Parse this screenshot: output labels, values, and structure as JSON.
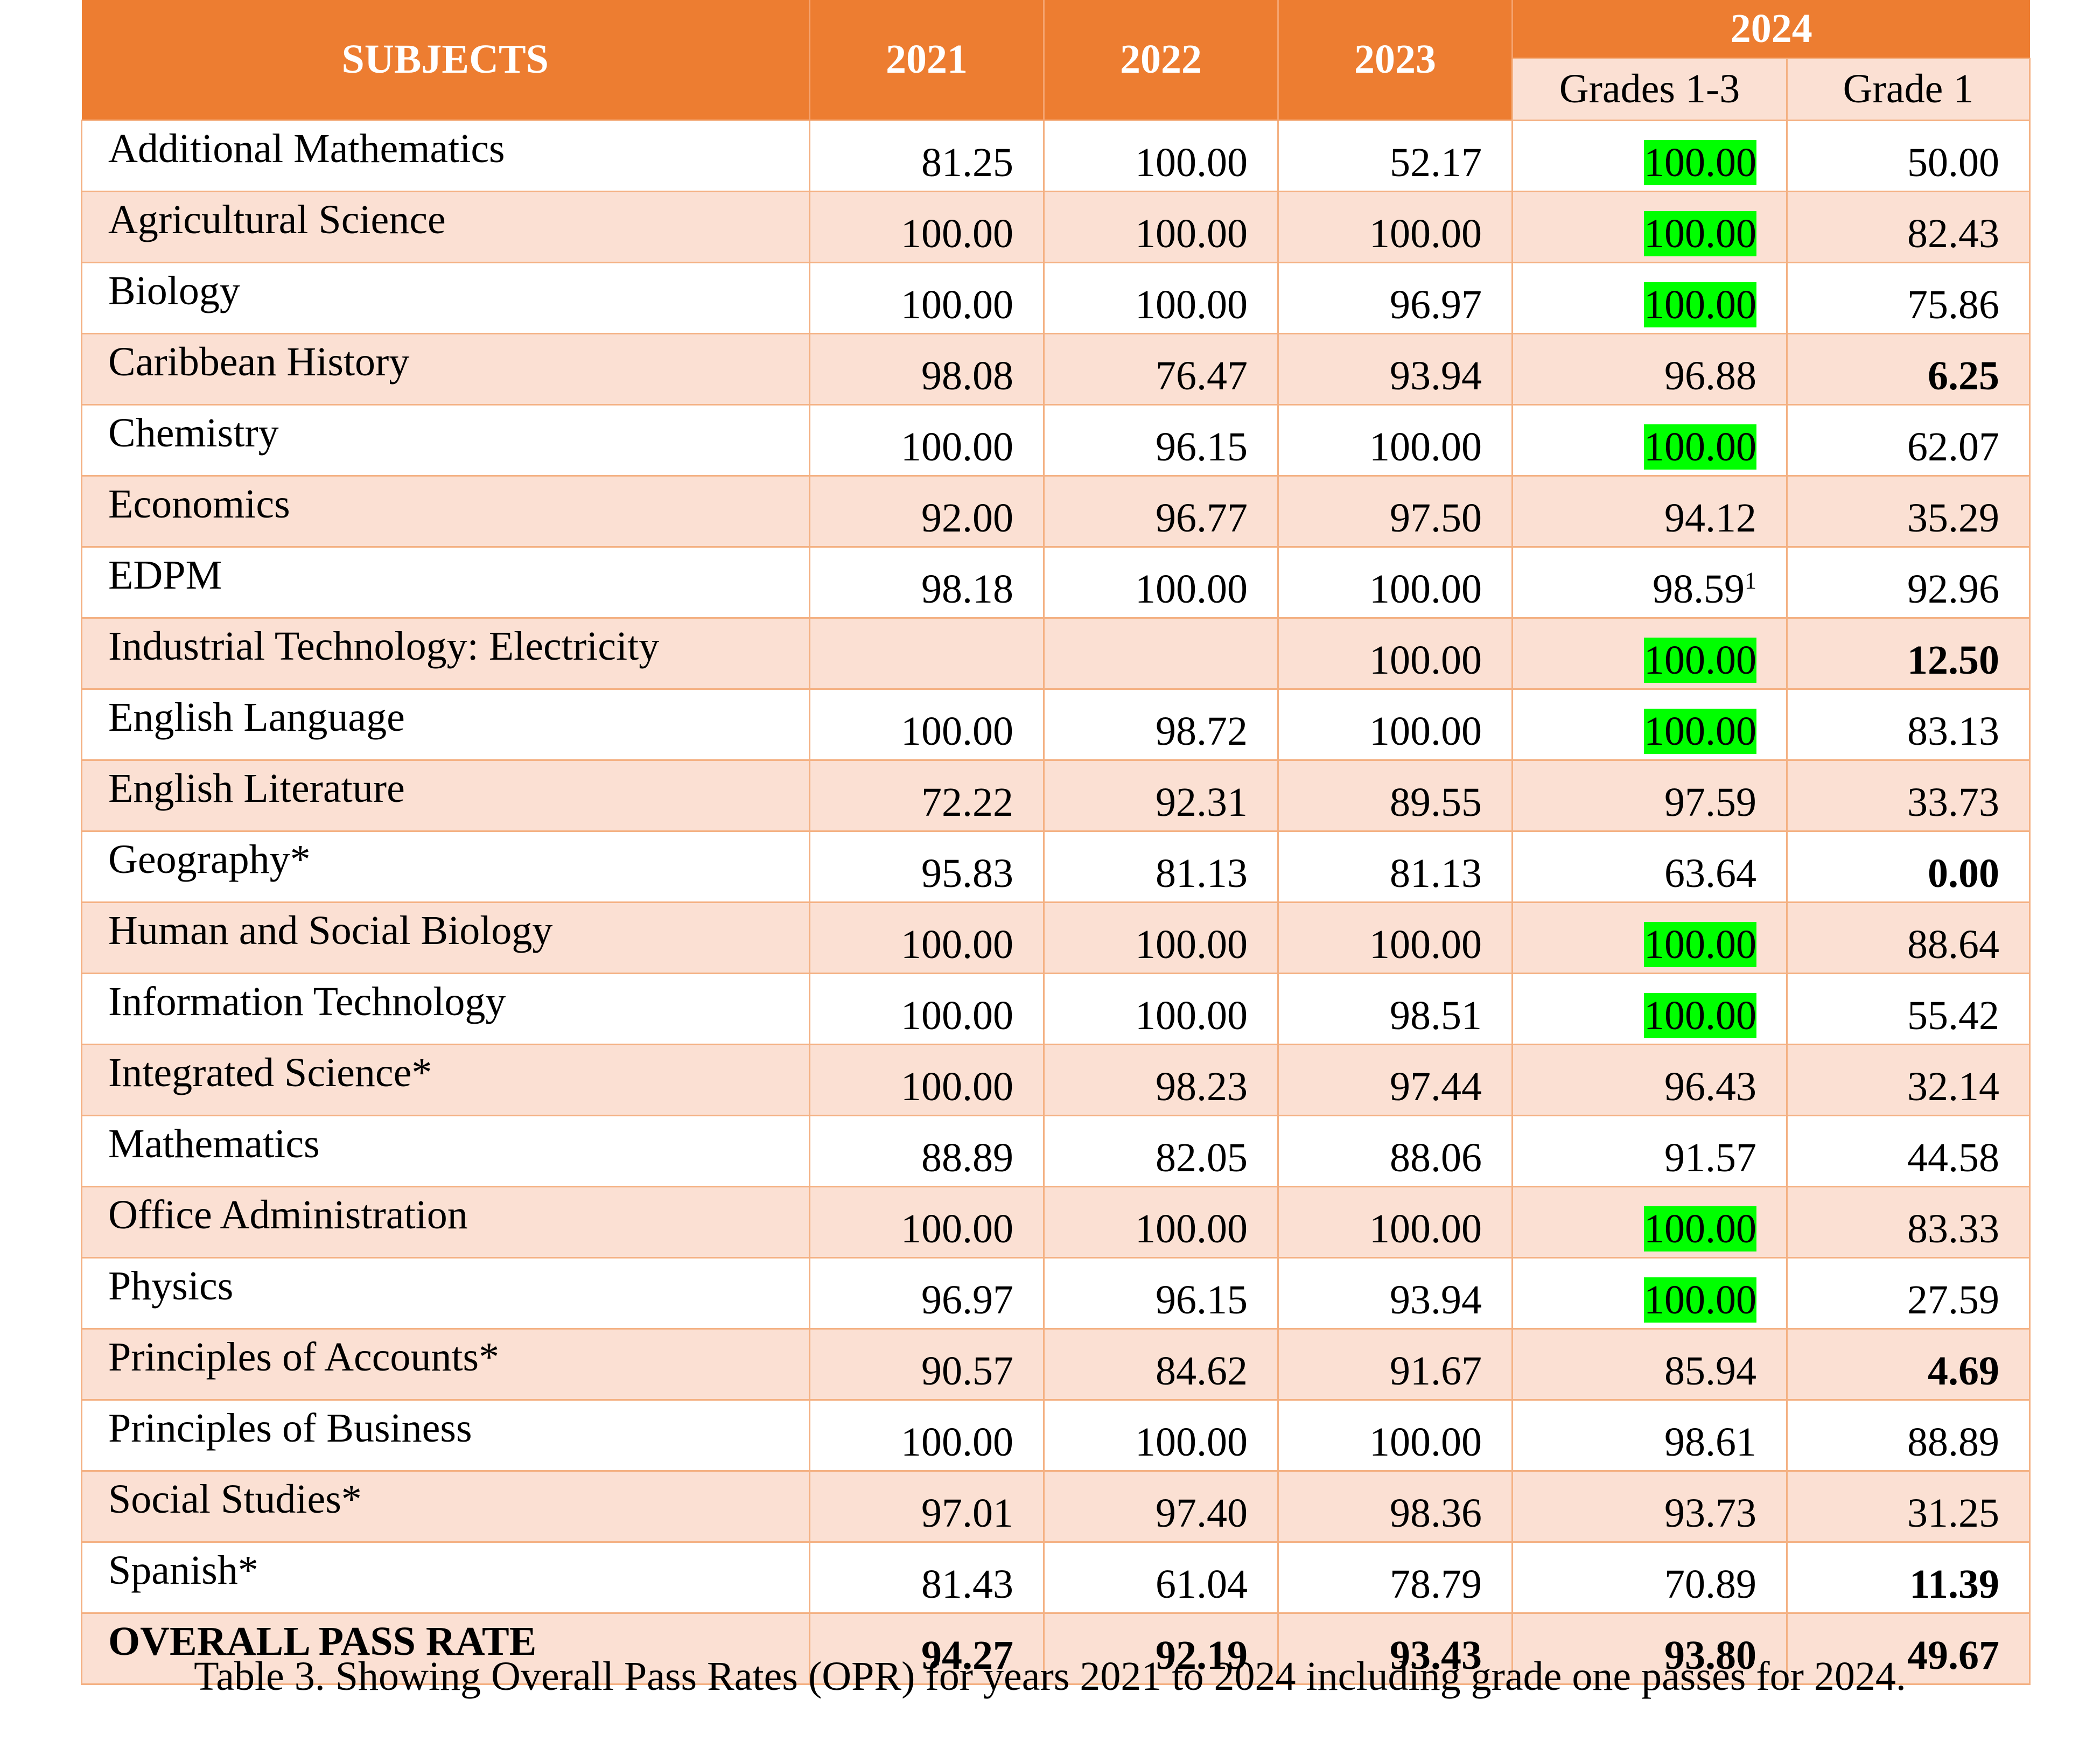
{
  "header": {
    "subjects": "SUBJECTS",
    "years": [
      "2021",
      "2022",
      "2023"
    ],
    "year_2024": "2024",
    "sub_2024": [
      "Grades 1-3",
      "Grade 1"
    ]
  },
  "table": {
    "rows": [
      {
        "subject": "Additional Mathematics",
        "cells": [
          "81.25",
          "100.00",
          "52.17",
          "100.00",
          "50.00"
        ],
        "highlight": [
          3
        ],
        "bold": []
      },
      {
        "subject": "Agricultural Science",
        "cells": [
          "100.00",
          "100.00",
          "100.00",
          "100.00",
          "82.43"
        ],
        "highlight": [
          3
        ],
        "bold": []
      },
      {
        "subject": "Biology",
        "cells": [
          "100.00",
          "100.00",
          "96.97",
          "100.00",
          "75.86"
        ],
        "highlight": [
          3
        ],
        "bold": []
      },
      {
        "subject": "Caribbean History",
        "cells": [
          "98.08",
          "76.47",
          "93.94",
          "96.88",
          "6.25"
        ],
        "highlight": [],
        "bold": [
          4
        ]
      },
      {
        "subject": "Chemistry",
        "cells": [
          "100.00",
          "96.15",
          "100.00",
          "100.00",
          "62.07"
        ],
        "highlight": [
          3
        ],
        "bold": []
      },
      {
        "subject": "Economics",
        "cells": [
          "92.00",
          "96.77",
          "97.50",
          "94.12",
          "35.29"
        ],
        "highlight": [],
        "bold": []
      },
      {
        "subject": "EDPM",
        "cells": [
          "98.18",
          "100.00",
          "100.00",
          "98.59",
          "92.96"
        ],
        "highlight": [],
        "bold": [],
        "note": {
          "col": 3,
          "text": "1"
        }
      },
      {
        "subject": "Industrial Technology: Electricity",
        "cells": [
          null,
          null,
          "100.00",
          "100.00",
          "12.50"
        ],
        "highlight": [
          3
        ],
        "bold": [
          4
        ]
      },
      {
        "subject": "English Language",
        "cells": [
          "100.00",
          "98.72",
          "100.00",
          "100.00",
          "83.13"
        ],
        "highlight": [
          3
        ],
        "bold": []
      },
      {
        "subject": "English Literature",
        "cells": [
          "72.22",
          "92.31",
          "89.55",
          "97.59",
          "33.73"
        ],
        "highlight": [],
        "bold": []
      },
      {
        "subject": "Geography*",
        "cells": [
          "95.83",
          "81.13",
          "81.13",
          "63.64",
          "0.00"
        ],
        "highlight": [],
        "bold": [
          4
        ]
      },
      {
        "subject": "Human and Social Biology",
        "cells": [
          "100.00",
          "100.00",
          "100.00",
          "100.00",
          "88.64"
        ],
        "highlight": [
          3
        ],
        "bold": []
      },
      {
        "subject": "Information Technology",
        "cells": [
          "100.00",
          "100.00",
          "98.51",
          "100.00",
          "55.42"
        ],
        "highlight": [
          3
        ],
        "bold": []
      },
      {
        "subject": "Integrated Science*",
        "cells": [
          "100.00",
          "98.23",
          "97.44",
          "96.43",
          "32.14"
        ],
        "highlight": [],
        "bold": []
      },
      {
        "subject": "Mathematics",
        "cells": [
          "88.89",
          "82.05",
          "88.06",
          "91.57",
          "44.58"
        ],
        "highlight": [],
        "bold": []
      },
      {
        "subject": "Office Administration",
        "cells": [
          "100.00",
          "100.00",
          "100.00",
          "100.00",
          "83.33"
        ],
        "highlight": [
          3
        ],
        "bold": []
      },
      {
        "subject": "Physics",
        "cells": [
          "96.97",
          "96.15",
          "93.94",
          "100.00",
          "27.59"
        ],
        "highlight": [
          3
        ],
        "bold": []
      },
      {
        "subject": "Principles of Accounts*",
        "cells": [
          "90.57",
          "84.62",
          "91.67",
          "85.94",
          "4.69"
        ],
        "highlight": [],
        "bold": [
          4
        ]
      },
      {
        "subject": "Principles of Business",
        "cells": [
          "100.00",
          "100.00",
          "100.00",
          "98.61",
          "88.89"
        ],
        "highlight": [],
        "bold": []
      },
      {
        "subject": "Social Studies*",
        "cells": [
          "97.01",
          "97.40",
          "98.36",
          "93.73",
          "31.25"
        ],
        "highlight": [],
        "bold": []
      },
      {
        "subject": "Spanish*",
        "cells": [
          "81.43",
          "61.04",
          "78.79",
          "70.89",
          "11.39"
        ],
        "highlight": [],
        "bold": [
          4
        ]
      },
      {
        "subject": "OVERALL PASS RATE",
        "cells": [
          "94.27",
          "92.19",
          "93.43",
          "93.80",
          "49.67"
        ],
        "highlight": [],
        "bold": [
          0,
          1,
          2,
          3,
          4
        ],
        "bold_subject": true
      }
    ]
  },
  "caption": "Table 3. Showing Overall Pass Rates (OPR) for years 2021 to 2024 including grade one passes for 2024."
}
